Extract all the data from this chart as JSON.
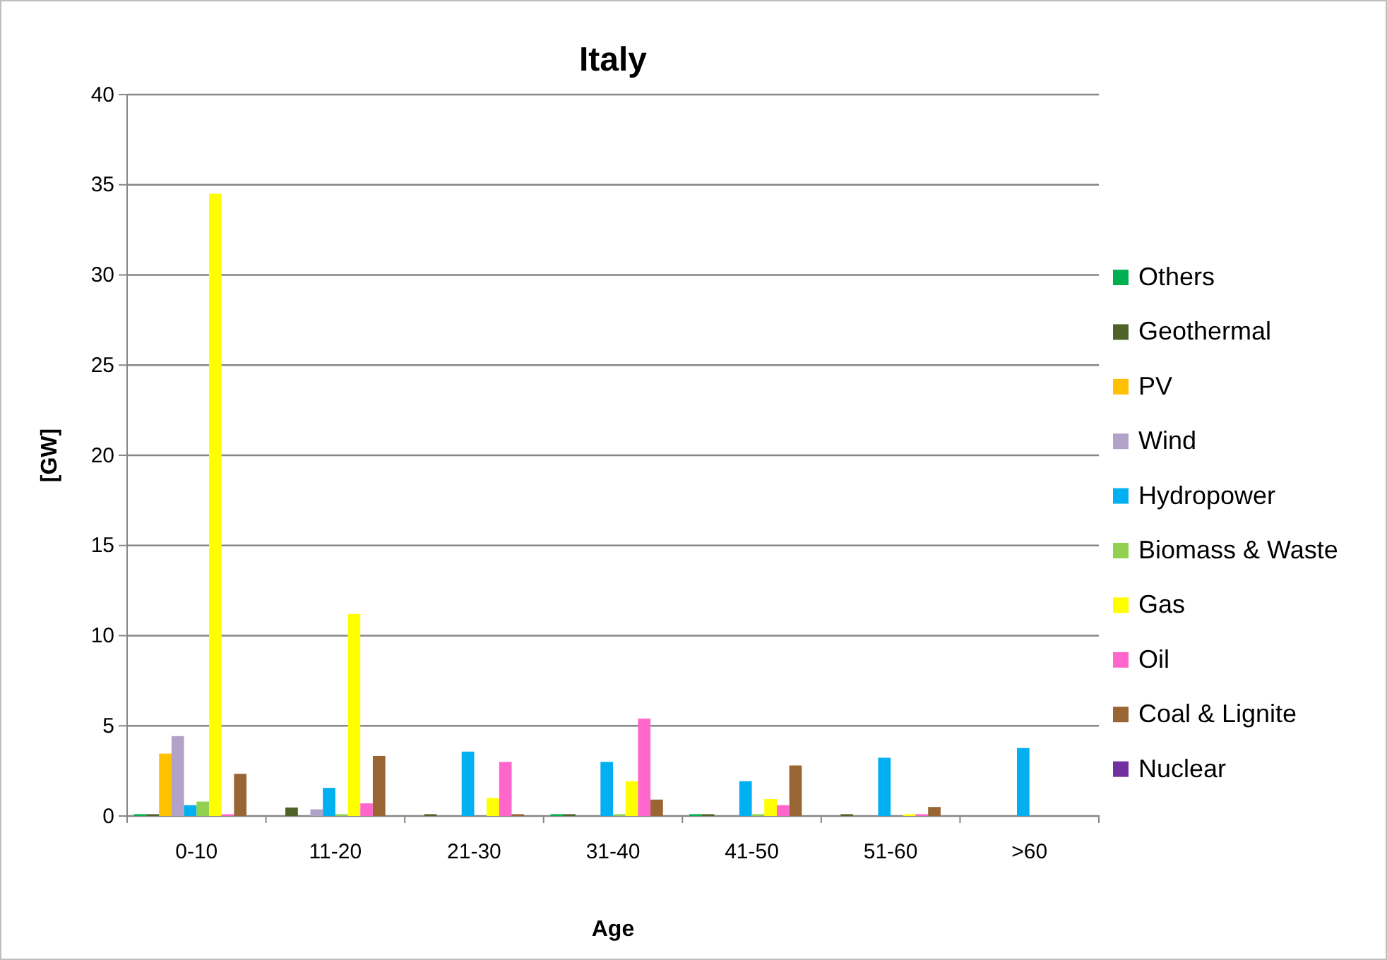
{
  "chart_data": {
    "type": "bar",
    "title": "Italy",
    "xlabel": "Age",
    "ylabel": "[GW]",
    "categories": [
      "0-10",
      "11-20",
      "21-30",
      "31-40",
      "41-50",
      "51-60",
      ">60"
    ],
    "ylim": [
      0,
      40
    ],
    "yticks": [
      0,
      5,
      10,
      15,
      20,
      25,
      30,
      35,
      40
    ],
    "grid": "y",
    "legend": "right",
    "series": [
      {
        "name": "Others",
        "color": "#00b050",
        "values": [
          0.1,
          0,
          0,
          0.1,
          0.1,
          0,
          0
        ]
      },
      {
        "name": "Geothermal",
        "color": "#4f6228",
        "values": [
          0.1,
          0.47,
          0.1,
          0.1,
          0.1,
          0.1,
          0
        ]
      },
      {
        "name": "PV",
        "color": "#ffc000",
        "values": [
          3.46,
          0,
          0,
          0,
          0,
          0,
          0
        ]
      },
      {
        "name": "Wind",
        "color": "#b3a2c7",
        "values": [
          4.43,
          0.37,
          0,
          0,
          0,
          0,
          0
        ]
      },
      {
        "name": "Hydropower",
        "color": "#00b0f0",
        "values": [
          0.6,
          1.56,
          3.57,
          3.0,
          1.93,
          3.23,
          3.77
        ]
      },
      {
        "name": "Biomass & Waste",
        "color": "#92d050",
        "values": [
          0.8,
          0.1,
          0,
          0.1,
          0.1,
          0,
          0
        ]
      },
      {
        "name": "Gas",
        "color": "#ffff00",
        "values": [
          34.5,
          11.2,
          1.0,
          1.93,
          0.94,
          0.1,
          0
        ]
      },
      {
        "name": "Oil",
        "color": "#ff66cc",
        "values": [
          0.1,
          0.7,
          3.0,
          5.4,
          0.6,
          0.1,
          0
        ]
      },
      {
        "name": "Coal & Lignite",
        "color": "#996633",
        "values": [
          2.34,
          3.33,
          0.1,
          0.91,
          2.8,
          0.5,
          0
        ]
      },
      {
        "name": "Nuclear",
        "color": "#7030a0",
        "values": [
          0,
          0,
          0,
          0,
          0,
          0,
          0
        ]
      }
    ]
  }
}
